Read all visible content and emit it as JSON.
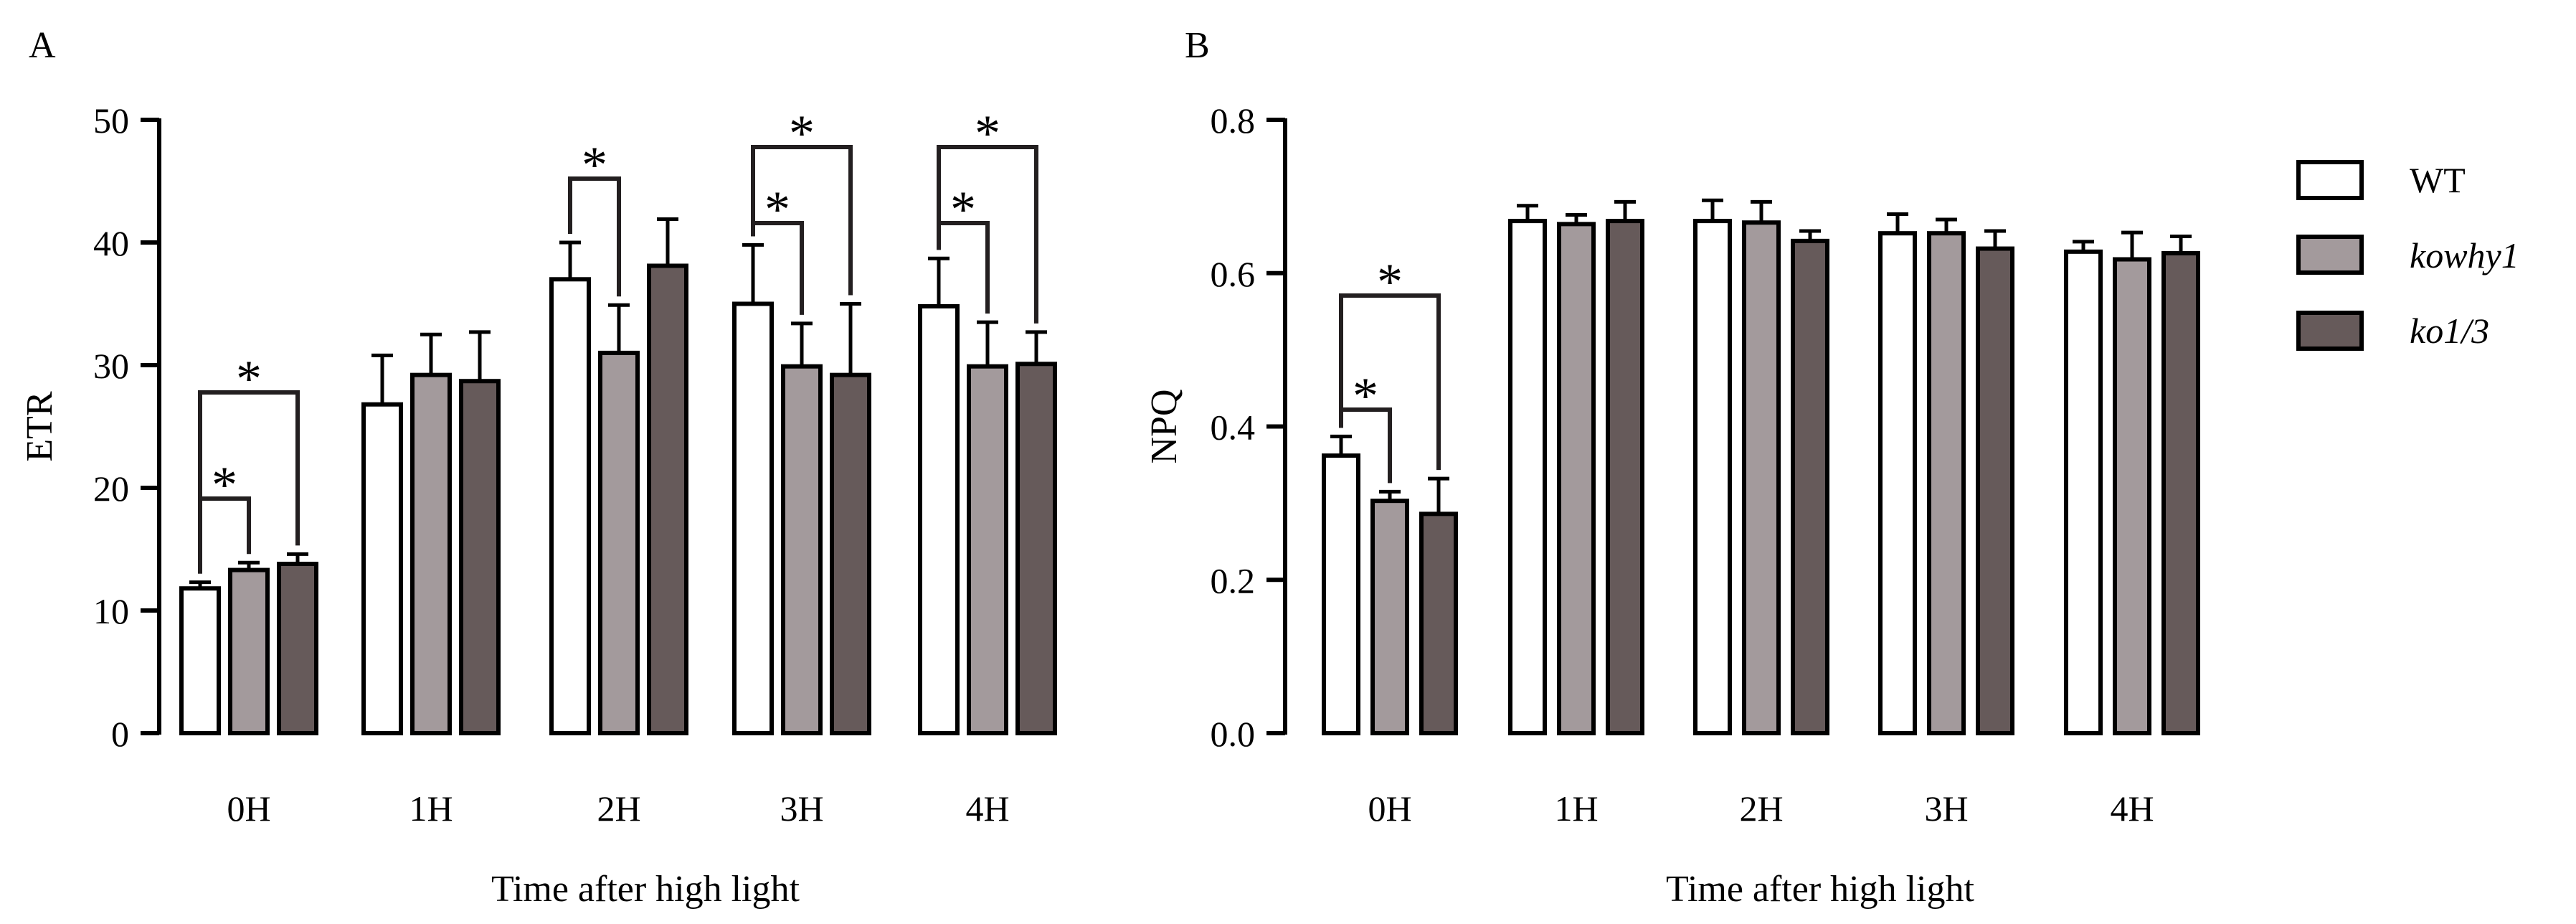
{
  "legend": [
    {
      "label": "WT",
      "style": "normal",
      "fill": "#ffffff"
    },
    {
      "label": "kowhy1",
      "style": "italic",
      "fill": "#a39a9c"
    },
    {
      "label": "ko1/3",
      "style": "italic",
      "fill": "#665a5a"
    }
  ],
  "colors": {
    "wt": "#ffffff",
    "kowhy1": "#a39a9c",
    "ko13": "#665a5a",
    "stroke": "#000000",
    "bracket": "#231f20"
  },
  "chart_data": [
    {
      "panel": "A",
      "type": "bar",
      "xlabel": "Time after high light",
      "ylabel": "ETR",
      "ylim": [
        0,
        50
      ],
      "yticks": [
        0,
        10,
        20,
        30,
        40,
        50
      ],
      "ytick_labels": [
        "0",
        "10",
        "20",
        "30",
        "40",
        "50"
      ],
      "categories": [
        "0H",
        "1H",
        "2H",
        "3H",
        "4H"
      ],
      "series": [
        {
          "name": "WT",
          "values": [
            11.8,
            26.8,
            37.0,
            35.0,
            34.8
          ],
          "errors": [
            0.5,
            4.0,
            3.0,
            4.8,
            3.9
          ]
        },
        {
          "name": "kowhy1",
          "values": [
            13.3,
            29.2,
            31.0,
            29.9,
            29.9
          ],
          "errors": [
            0.6,
            3.3,
            3.9,
            3.5,
            3.6
          ]
        },
        {
          "name": "ko1/3",
          "values": [
            13.8,
            28.7,
            38.1,
            29.2,
            30.1
          ],
          "errors": [
            0.8,
            4.0,
            3.8,
            5.8,
            2.6
          ]
        }
      ],
      "significance": [
        {
          "category": "0H",
          "from": "WT",
          "to": "kowhy1",
          "label": "*"
        },
        {
          "category": "0H",
          "from": "WT",
          "to": "ko1/3",
          "label": "*"
        },
        {
          "category": "2H",
          "from": "WT",
          "to": "kowhy1",
          "label": "*"
        },
        {
          "category": "3H",
          "from": "WT",
          "to": "kowhy1",
          "label": "*"
        },
        {
          "category": "3H",
          "from": "WT",
          "to": "ko1/3",
          "label": "*"
        },
        {
          "category": "4H",
          "from": "WT",
          "to": "kowhy1",
          "label": "*"
        },
        {
          "category": "4H",
          "from": "WT",
          "to": "ko1/3",
          "label": "*"
        }
      ]
    },
    {
      "panel": "B",
      "type": "bar",
      "xlabel": "Time after high light",
      "ylabel": "NPQ",
      "ylim": [
        0,
        0.8
      ],
      "yticks": [
        0,
        0.2,
        0.4,
        0.6,
        0.8
      ],
      "ytick_labels": [
        "0.0",
        "0.2",
        "0.4",
        "0.6",
        "0.8"
      ],
      "categories": [
        "0H",
        "1H",
        "2H",
        "3H",
        "4H"
      ],
      "series": [
        {
          "name": "WT",
          "values": [
            0.362,
            0.668,
            0.668,
            0.652,
            0.628
          ],
          "errors": [
            0.025,
            0.02,
            0.027,
            0.025,
            0.013
          ]
        },
        {
          "name": "kowhy1",
          "values": [
            0.303,
            0.664,
            0.666,
            0.652,
            0.618
          ],
          "errors": [
            0.012,
            0.012,
            0.027,
            0.018,
            0.035
          ]
        },
        {
          "name": "ko1/3",
          "values": [
            0.286,
            0.668,
            0.642,
            0.632,
            0.626
          ],
          "errors": [
            0.046,
            0.025,
            0.013,
            0.023,
            0.022
          ]
        }
      ],
      "significance": [
        {
          "category": "0H",
          "from": "WT",
          "to": "kowhy1",
          "label": "*"
        },
        {
          "category": "0H",
          "from": "WT",
          "to": "ko1/3",
          "label": "*"
        }
      ]
    }
  ]
}
